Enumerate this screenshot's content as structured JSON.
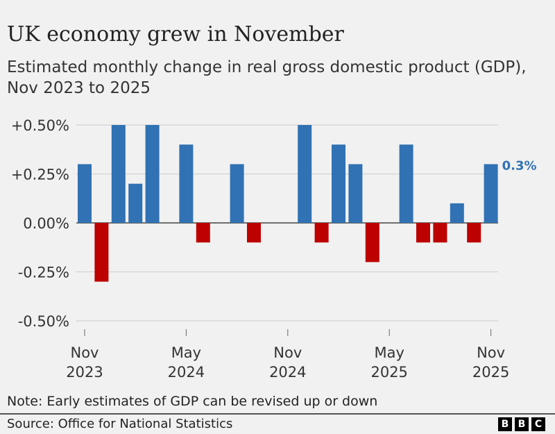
{
  "title": "UK economy grew in November",
  "subtitle": "Estimated monthly change in real gross domestic product (GDP), Nov 2023 to 2025",
  "note": "Note: Early estimates of GDP can be revised up or down",
  "source": "Source: Office for National Statistics",
  "logo": [
    "B",
    "B",
    "C"
  ],
  "colors": {
    "positive": "#3072b3",
    "negative": "#bd0000",
    "label": "#3072b3"
  },
  "chart_data": {
    "type": "bar",
    "categories": [
      "Nov 2023",
      "Dec 2023",
      "Jan 2024",
      "Feb 2024",
      "Mar 2024",
      "Apr 2024",
      "May 2024",
      "Jun 2024",
      "Jul 2024",
      "Aug 2024",
      "Sep 2024",
      "Oct 2024",
      "Nov 2024",
      "Dec 2024",
      "Jan 2025",
      "Feb 2025",
      "Mar 2025",
      "Apr 2025",
      "May 2025",
      "Jun 2025",
      "Jul 2025",
      "Aug 2025",
      "Sep 2025",
      "Oct 2025",
      "Nov 2025"
    ],
    "values": [
      0.3,
      -0.3,
      0.5,
      0.2,
      0.5,
      0,
      0.4,
      -0.1,
      0,
      0.3,
      -0.1,
      0,
      0,
      0.5,
      -0.1,
      0.4,
      0.3,
      -0.2,
      0,
      0.4,
      -0.1,
      -0.1,
      0.1,
      -0.1,
      0.3
    ],
    "ylim": [
      -0.5,
      0.5
    ],
    "yticks": [
      0.5,
      0.25,
      0,
      -0.25,
      -0.5
    ],
    "ytick_labels": [
      "+0.50%",
      "+0.25%",
      "0.00%",
      "-0.25%",
      "-0.50%"
    ],
    "xticks": [
      {
        "index": 0,
        "line1": "Nov",
        "line2": "2023"
      },
      {
        "index": 6,
        "line1": "May",
        "line2": "2024"
      },
      {
        "index": 12,
        "line1": "Nov",
        "line2": "2024"
      },
      {
        "index": 18,
        "line1": "May",
        "line2": "2025"
      },
      {
        "index": 24,
        "line1": "Nov",
        "line2": "2025"
      }
    ],
    "annotation": {
      "index": 24,
      "text": "0.3%"
    },
    "grid": true
  }
}
